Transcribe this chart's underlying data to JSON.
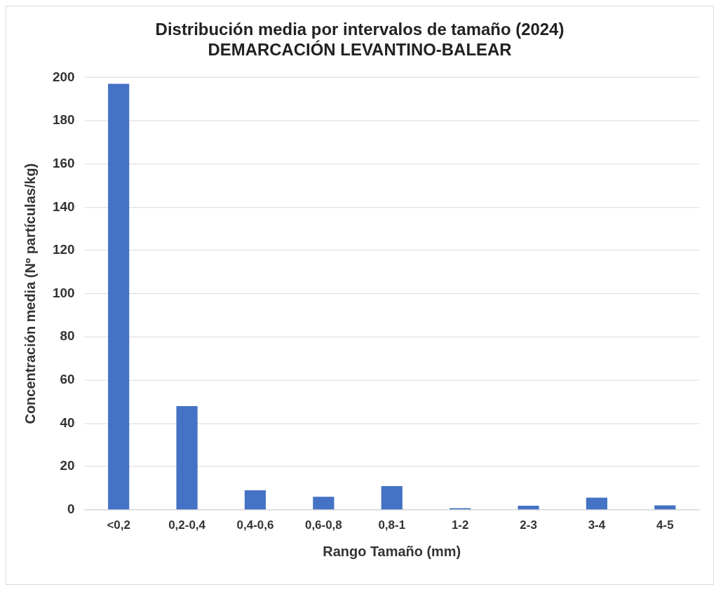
{
  "chart_data": {
    "type": "bar",
    "title": [
      "Distribución media por intervalos de tamaño (2024)",
      "DEMARCACIÓN LEVANTINO-BALEAR"
    ],
    "xlabel": "Rango Tamaño (mm)",
    "ylabel": "Concentración media (Nº partículas/kg)",
    "categories": [
      "<0,2",
      "0,2-0,4",
      "0,4-0,6",
      "0,6-0,8",
      "0,8-1",
      "1-2",
      "2-3",
      "3-4",
      "4-5"
    ],
    "values": [
      197,
      48,
      9,
      6,
      11,
      0.8,
      1.9,
      5.6,
      2.1
    ],
    "color": "#4472c4",
    "ylim": [
      0,
      200
    ],
    "yticks": [
      0,
      20,
      40,
      60,
      80,
      100,
      120,
      140,
      160,
      180,
      200
    ],
    "grid": "y",
    "legend": false
  }
}
